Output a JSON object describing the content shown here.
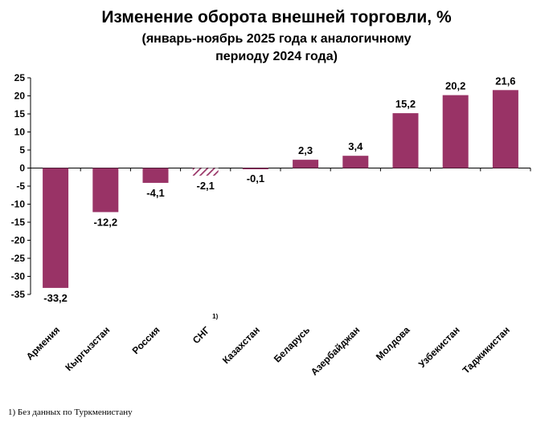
{
  "chart_data": {
    "type": "bar",
    "title": "Изменение оборота внешней торговли, %",
    "subtitle_line1": "(январь-ноябрь 2025 года к аналогичному",
    "subtitle_line2": "периоду 2024 года)",
    "categories": [
      "Армения",
      "Кыргызстан",
      "Россия",
      "СНГ",
      "Казахстан",
      "Беларусь",
      "Азербайджан",
      "Молдова",
      "Узбекистан",
      "Таджикистан"
    ],
    "values": [
      -33.2,
      -12.2,
      -4.1,
      -2.1,
      -0.1,
      2.3,
      3.4,
      15.2,
      20.2,
      21.6
    ],
    "data_labels": [
      "-33,2",
      "-12,2",
      "-4,1",
      "-2,1",
      "-0,1",
      "2,3",
      "3,4",
      "15,2",
      "20,2",
      "21,6"
    ],
    "ylim": [
      -35,
      25
    ],
    "yticks": [
      25,
      20,
      15,
      10,
      5,
      0,
      -5,
      -10,
      -15,
      -20,
      -25,
      -30,
      -35
    ],
    "ytick_labels": [
      "25",
      "20",
      "15",
      "10",
      "5",
      "0",
      "-5",
      "-10",
      "-15",
      "-20",
      "-25",
      "-30",
      "-35"
    ],
    "xlabel": "",
    "ylabel": "",
    "grid": false,
    "legend": "none",
    "bar_color": "#993366",
    "hatched_category": "СНГ",
    "category_footnote_marker": "1)",
    "footnote": "1)  Без данных по Туркменистану"
  }
}
